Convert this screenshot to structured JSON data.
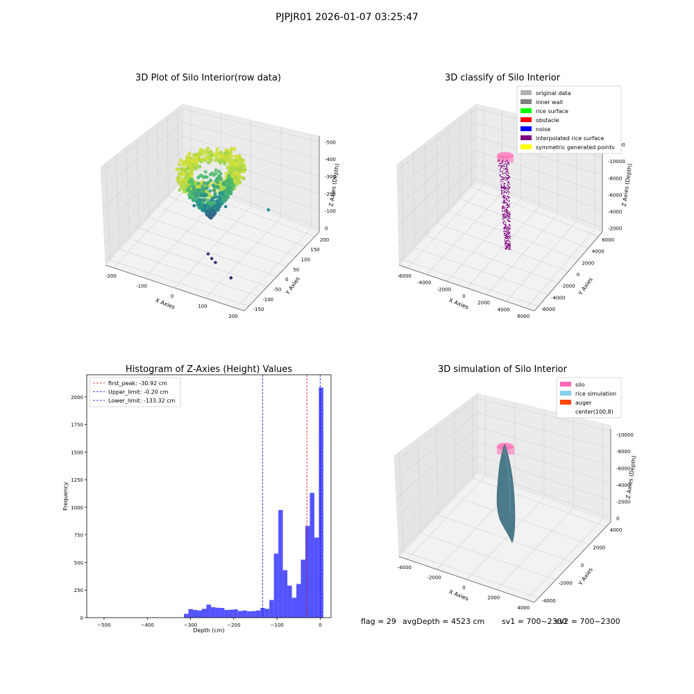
{
  "suptitle": "PJPJR01 2026-01-07 03:25:47",
  "footer": {
    "flag": "flag = 29",
    "avgdepth": "avgDepth = 4523 cm",
    "sv1": "sv1 = 700~2300",
    "sv2": "sv2 = 700~2300"
  },
  "colors": {
    "histogram": "#4b4bff",
    "first_peak_line": "#e00000",
    "limit_lines": "#0000cc",
    "silo": "#ff69b4",
    "rice": "#4b7b8a",
    "classified_points": "#800080"
  },
  "chart_data": [
    {
      "type": "scatter3d",
      "title": "3D Plot of Silo Interior(row data)",
      "xlabel": "X Axies",
      "ylabel": "Y Axies",
      "zlabel": "Z Axies (Depth)",
      "x_ticks": [
        "-200",
        "-100",
        "0",
        "100",
        "200"
      ],
      "y_ticks": [
        "-150",
        "-100",
        "-50",
        "0",
        "50",
        "100",
        "150",
        "200"
      ],
      "z_ticks": [
        "0",
        "-100",
        "-200",
        "-300",
        "-400",
        "-500"
      ],
      "xlim": [
        -250,
        250
      ],
      "ylim": [
        -175,
        225
      ],
      "zlim": [
        -550,
        20
      ],
      "colormap": "viridis",
      "outlier_points": [
        {
          "x": 40,
          "y": -60,
          "z": -450
        },
        {
          "x": 60,
          "y": -70,
          "z": -455
        },
        {
          "x": 80,
          "y": -80,
          "z": -455
        },
        {
          "x": 150,
          "y": -100,
          "z": -490
        },
        {
          "x": -80,
          "y": 40,
          "z": -330
        },
        {
          "x": 20,
          "y": 60,
          "z": -300
        },
        {
          "x": 160,
          "y": 80,
          "z": -260
        }
      ]
    },
    {
      "type": "scatter3d",
      "title": "3D classify of Silo Interior",
      "xlabel": "X Axies",
      "ylabel": "Y Axies",
      "zlabel": "Z Axies (Depth)",
      "x_ticks": [
        "-6000",
        "-4000",
        "-2000",
        "0",
        "2000",
        "4000",
        "6000"
      ],
      "y_ticks": [
        "-6000",
        "-4000",
        "-2000",
        "0",
        "2000",
        "4000",
        "6000"
      ],
      "z_ticks": [
        "-2000",
        "-4000",
        "-6000",
        "-8000",
        "-10000",
        "-12000"
      ],
      "xlim": [
        -6000,
        6000
      ],
      "ylim": [
        -6000,
        6000
      ],
      "zlim": [
        -12000,
        0
      ],
      "legend": [
        {
          "label": "original data",
          "color": "#b0b0b0"
        },
        {
          "label": "inner wall",
          "color": "#808080"
        },
        {
          "label": "rice surface",
          "color": "#00ff00"
        },
        {
          "label": "obstacle",
          "color": "#ff0000"
        },
        {
          "label": "noise",
          "color": "#0000ff"
        },
        {
          "label": "interpolated rice surface",
          "color": "#800080"
        },
        {
          "label": "symmetric generated points",
          "color": "#ffff00"
        }
      ],
      "legend_loc": "upper right"
    },
    {
      "type": "bar",
      "title": "Histogram of Z-Axies (Height) Values",
      "xlabel": "Depth (cm)",
      "ylabel": "Frequency",
      "xlim": [
        -540,
        25
      ],
      "ylim": [
        0,
        2200
      ],
      "x_ticks": [
        -500,
        -400,
        -300,
        -200,
        -100,
        0
      ],
      "y_ticks": [
        0,
        250,
        500,
        750,
        1000,
        1250,
        1500,
        1750,
        2000
      ],
      "bin_width": 10.4,
      "bin_starts": [
        -315.2,
        -304.8,
        -294.4,
        -284.0,
        -273.6,
        -263.2,
        -252.8,
        -242.4,
        -232.0,
        -221.6,
        -211.2,
        -200.8,
        -190.4,
        -180.0,
        -169.6,
        -159.2,
        -148.8,
        -138.4,
        -128.0,
        -117.6,
        -107.2,
        -96.8,
        -86.4,
        -76.0,
        -65.6,
        -55.2,
        -44.8,
        -34.4,
        -24.0,
        -13.6,
        -3.2
      ],
      "values": [
        35,
        78,
        70,
        65,
        80,
        118,
        95,
        90,
        88,
        70,
        72,
        75,
        60,
        65,
        58,
        60,
        65,
        88,
        80,
        160,
        580,
        975,
        430,
        290,
        180,
        305,
        525,
        830,
        1130,
        725,
        2085
      ],
      "reference_lines": [
        {
          "label": "first_peak: -30.92 cm",
          "x": -30.92,
          "color": "#e00000"
        },
        {
          "label": "Upper_limit: -0.20 cm",
          "x": -0.2,
          "color": "#0000cc"
        },
        {
          "label": "Lower_limit: -133.32 cm",
          "x": -133.32,
          "color": "#0000cc"
        }
      ],
      "legend_loc": "upper left"
    },
    {
      "type": "surface3d",
      "title": "3D simulation of Silo Interior",
      "xlabel": "X Axies",
      "ylabel": "Y Axies",
      "zlabel": "Z Axies (Depth)",
      "x_ticks": [
        "-4000",
        "-2000",
        "0",
        "2000",
        "4000"
      ],
      "y_ticks": [
        "-4000",
        "-2000",
        "0",
        "2000",
        "4000"
      ],
      "z_ticks": [
        "0",
        "-2000",
        "-4000",
        "-6000",
        "-8000",
        "-10000"
      ],
      "xlim": [
        -5000,
        5000
      ],
      "ylim": [
        -5000,
        5000
      ],
      "zlim": [
        -11000,
        500
      ],
      "legend": [
        {
          "label": "silo",
          "color": "#ff69b4"
        },
        {
          "label": "rice simulation",
          "color": "#87ceeb"
        },
        {
          "label": "auger",
          "color": "#ff4500"
        },
        {
          "label": "center(100,8)",
          "color": ""
        }
      ],
      "legend_loc": "upper right"
    }
  ]
}
